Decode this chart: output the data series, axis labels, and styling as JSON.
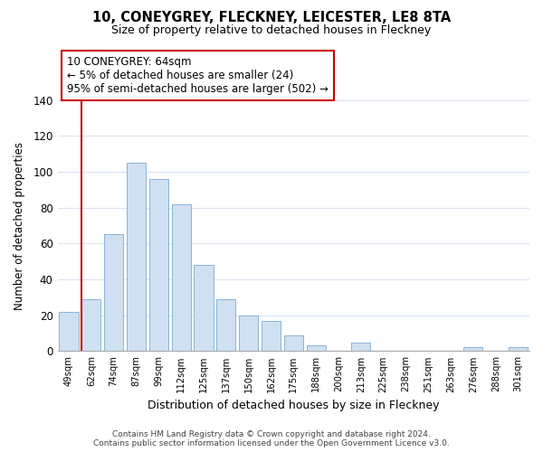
{
  "title": "10, CONEYGREY, FLECKNEY, LEICESTER, LE8 8TA",
  "subtitle": "Size of property relative to detached houses in Fleckney",
  "xlabel": "Distribution of detached houses by size in Fleckney",
  "ylabel": "Number of detached properties",
  "bar_color": "#cfe0f2",
  "bar_edge_color": "#8ab4d8",
  "categories": [
    "49sqm",
    "62sqm",
    "74sqm",
    "87sqm",
    "99sqm",
    "112sqm",
    "125sqm",
    "137sqm",
    "150sqm",
    "162sqm",
    "175sqm",
    "188sqm",
    "200sqm",
    "213sqm",
    "225sqm",
    "238sqm",
    "251sqm",
    "263sqm",
    "276sqm",
    "288sqm",
    "301sqm"
  ],
  "values": [
    22,
    29,
    65,
    105,
    96,
    82,
    48,
    29,
    20,
    17,
    9,
    3,
    0,
    5,
    0,
    0,
    0,
    0,
    2,
    0,
    2
  ],
  "vline_index": 1,
  "vline_color": "#cc0000",
  "ylim": [
    0,
    140
  ],
  "yticks": [
    0,
    20,
    40,
    60,
    80,
    100,
    120,
    140
  ],
  "annotation_text": "10 CONEYGREY: 64sqm\n← 5% of detached houses are smaller (24)\n95% of semi-detached houses are larger (502) →",
  "annotation_box_color": "#ffffff",
  "annotation_box_edge": "#cc0000",
  "footer_line1": "Contains HM Land Registry data © Crown copyright and database right 2024.",
  "footer_line2": "Contains public sector information licensed under the Open Government Licence v3.0.",
  "background_color": "#ffffff",
  "grid_color": "#d8e4f0"
}
